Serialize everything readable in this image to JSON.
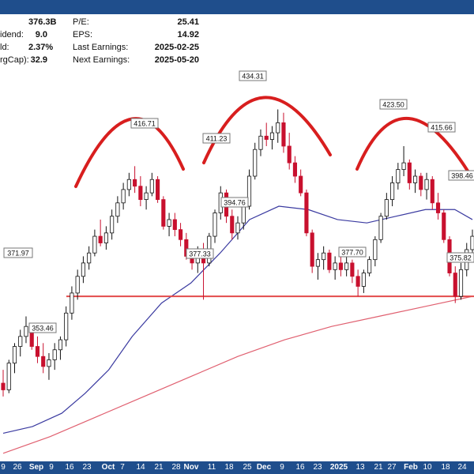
{
  "header": {
    "stats_left": [
      {
        "label": "",
        "value": "376.3B"
      },
      {
        "label": "idend:",
        "value": "9.0"
      },
      {
        "label": "ld:",
        "value": "2.37%"
      },
      {
        "label": "rgCap):",
        "value": "32.9"
      }
    ],
    "stats_right": [
      {
        "label": "P/E:",
        "value": "25.41"
      },
      {
        "label": "EPS:",
        "value": "14.92"
      },
      {
        "label": "Last Earnings:",
        "value": "2025-02-25"
      },
      {
        "label": "Next Earnings:",
        "value": "2025-05-20"
      }
    ]
  },
  "colors": {
    "bar_bg": "#1f4e8c",
    "up_candle": "#ffffff",
    "down_candle": "#c8102e",
    "ma_short": "#3a3aa0",
    "ma_long": "#e06070",
    "support": "#e34b4b",
    "arcs": "#d81e1e"
  },
  "chart_data": {
    "type": "candlestick",
    "ylim": [
      330,
      445
    ],
    "x_tick_labels": [
      {
        "label": "9",
        "bold": false
      },
      {
        "label": "26",
        "bold": false
      },
      {
        "label": "Sep",
        "bold": true
      },
      {
        "label": "9",
        "bold": false
      },
      {
        "label": "16",
        "bold": false
      },
      {
        "label": "23",
        "bold": false
      },
      {
        "label": "Oct",
        "bold": true
      },
      {
        "label": "7",
        "bold": false
      },
      {
        "label": "14",
        "bold": false
      },
      {
        "label": "21",
        "bold": false
      },
      {
        "label": "28",
        "bold": false
      },
      {
        "label": "Nov",
        "bold": true
      },
      {
        "label": "11",
        "bold": false
      },
      {
        "label": "18",
        "bold": false
      },
      {
        "label": "25",
        "bold": false
      },
      {
        "label": "Dec",
        "bold": true
      },
      {
        "label": "9",
        "bold": false
      },
      {
        "label": "16",
        "bold": false
      },
      {
        "label": "23",
        "bold": false
      },
      {
        "label": "2025",
        "bold": true
      },
      {
        "label": "13",
        "bold": false
      },
      {
        "label": "21",
        "bold": false
      },
      {
        "label": "27",
        "bold": false
      },
      {
        "label": "Feb",
        "bold": true
      },
      {
        "label": "10",
        "bold": false
      },
      {
        "label": "18",
        "bold": false
      },
      {
        "label": "24",
        "bold": false
      }
    ],
    "price_annotations": [
      "371.97",
      "353.46",
      "416.71",
      "377.33",
      "411.23",
      "394.76",
      "434.31",
      "377.70",
      "423.50",
      "415.66",
      "398.46",
      "375.82"
    ],
    "support_level": 378.0,
    "candles": [
      {
        "o": 352,
        "h": 356,
        "l": 348,
        "c": 350
      },
      {
        "o": 350,
        "h": 359,
        "l": 349,
        "c": 358
      },
      {
        "o": 358,
        "h": 364,
        "l": 355,
        "c": 363
      },
      {
        "o": 363,
        "h": 368,
        "l": 360,
        "c": 366
      },
      {
        "o": 366,
        "h": 372,
        "l": 364,
        "c": 369
      },
      {
        "o": 369,
        "h": 370,
        "l": 362,
        "c": 363
      },
      {
        "o": 363,
        "h": 366,
        "l": 358,
        "c": 360
      },
      {
        "o": 360,
        "h": 364,
        "l": 355,
        "c": 357
      },
      {
        "o": 357,
        "h": 361,
        "l": 353,
        "c": 359
      },
      {
        "o": 359,
        "h": 364,
        "l": 356,
        "c": 362
      },
      {
        "o": 362,
        "h": 366,
        "l": 359,
        "c": 365
      },
      {
        "o": 365,
        "h": 375,
        "l": 363,
        "c": 373
      },
      {
        "o": 373,
        "h": 381,
        "l": 371,
        "c": 379
      },
      {
        "o": 379,
        "h": 386,
        "l": 377,
        "c": 384
      },
      {
        "o": 384,
        "h": 390,
        "l": 382,
        "c": 388
      },
      {
        "o": 388,
        "h": 393,
        "l": 386,
        "c": 391
      },
      {
        "o": 391,
        "h": 398,
        "l": 390,
        "c": 396
      },
      {
        "o": 396,
        "h": 401,
        "l": 393,
        "c": 394
      },
      {
        "o": 394,
        "h": 399,
        "l": 392,
        "c": 397
      },
      {
        "o": 397,
        "h": 404,
        "l": 395,
        "c": 402
      },
      {
        "o": 402,
        "h": 408,
        "l": 400,
        "c": 406
      },
      {
        "o": 406,
        "h": 412,
        "l": 404,
        "c": 410
      },
      {
        "o": 410,
        "h": 415,
        "l": 408,
        "c": 413
      },
      {
        "o": 413,
        "h": 417,
        "l": 409,
        "c": 411
      },
      {
        "o": 411,
        "h": 414,
        "l": 405,
        "c": 407
      },
      {
        "o": 407,
        "h": 411,
        "l": 404,
        "c": 409
      },
      {
        "o": 409,
        "h": 415,
        "l": 408,
        "c": 413
      },
      {
        "o": 413,
        "h": 414,
        "l": 406,
        "c": 407
      },
      {
        "o": 407,
        "h": 408,
        "l": 398,
        "c": 399
      },
      {
        "o": 399,
        "h": 403,
        "l": 396,
        "c": 401
      },
      {
        "o": 401,
        "h": 403,
        "l": 396,
        "c": 398
      },
      {
        "o": 398,
        "h": 400,
        "l": 393,
        "c": 395
      },
      {
        "o": 395,
        "h": 397,
        "l": 389,
        "c": 390
      },
      {
        "o": 390,
        "h": 392,
        "l": 386,
        "c": 388
      },
      {
        "o": 388,
        "h": 393,
        "l": 385,
        "c": 391
      },
      {
        "o": 391,
        "h": 394,
        "l": 377,
        "c": 388
      },
      {
        "o": 388,
        "h": 397,
        "l": 387,
        "c": 396
      },
      {
        "o": 396,
        "h": 404,
        "l": 394,
        "c": 403
      },
      {
        "o": 403,
        "h": 411,
        "l": 401,
        "c": 409
      },
      {
        "o": 409,
        "h": 410,
        "l": 400,
        "c": 402
      },
      {
        "o": 402,
        "h": 404,
        "l": 395,
        "c": 397
      },
      {
        "o": 397,
        "h": 402,
        "l": 395,
        "c": 400
      },
      {
        "o": 400,
        "h": 407,
        "l": 398,
        "c": 405
      },
      {
        "o": 405,
        "h": 416,
        "l": 404,
        "c": 414
      },
      {
        "o": 414,
        "h": 424,
        "l": 413,
        "c": 422
      },
      {
        "o": 422,
        "h": 428,
        "l": 420,
        "c": 426
      },
      {
        "o": 426,
        "h": 430,
        "l": 423,
        "c": 425
      },
      {
        "o": 425,
        "h": 429,
        "l": 422,
        "c": 427
      },
      {
        "o": 427,
        "h": 434,
        "l": 424,
        "c": 430
      },
      {
        "o": 430,
        "h": 433,
        "l": 421,
        "c": 423
      },
      {
        "o": 423,
        "h": 427,
        "l": 416,
        "c": 418
      },
      {
        "o": 418,
        "h": 420,
        "l": 412,
        "c": 414
      },
      {
        "o": 414,
        "h": 416,
        "l": 408,
        "c": 409
      },
      {
        "o": 409,
        "h": 410,
        "l": 396,
        "c": 397
      },
      {
        "o": 397,
        "h": 398,
        "l": 385,
        "c": 387
      },
      {
        "o": 387,
        "h": 391,
        "l": 383,
        "c": 389
      },
      {
        "o": 389,
        "h": 393,
        "l": 386,
        "c": 391
      },
      {
        "o": 391,
        "h": 392,
        "l": 385,
        "c": 386
      },
      {
        "o": 386,
        "h": 390,
        "l": 383,
        "c": 388
      },
      {
        "o": 388,
        "h": 390,
        "l": 384,
        "c": 386
      },
      {
        "o": 386,
        "h": 390,
        "l": 384,
        "c": 388
      },
      {
        "o": 388,
        "h": 389,
        "l": 382,
        "c": 384
      },
      {
        "o": 384,
        "h": 386,
        "l": 378,
        "c": 381
      },
      {
        "o": 381,
        "h": 386,
        "l": 379,
        "c": 385
      },
      {
        "o": 385,
        "h": 390,
        "l": 384,
        "c": 389
      },
      {
        "o": 389,
        "h": 396,
        "l": 387,
        "c": 395
      },
      {
        "o": 395,
        "h": 403,
        "l": 394,
        "c": 402
      },
      {
        "o": 402,
        "h": 409,
        "l": 401,
        "c": 407
      },
      {
        "o": 407,
        "h": 414,
        "l": 405,
        "c": 412
      },
      {
        "o": 412,
        "h": 418,
        "l": 410,
        "c": 416
      },
      {
        "o": 416,
        "h": 423,
        "l": 414,
        "c": 418
      },
      {
        "o": 418,
        "h": 419,
        "l": 410,
        "c": 412
      },
      {
        "o": 412,
        "h": 416,
        "l": 409,
        "c": 414
      },
      {
        "o": 414,
        "h": 415,
        "l": 408,
        "c": 410
      },
      {
        "o": 410,
        "h": 415,
        "l": 407,
        "c": 413
      },
      {
        "o": 413,
        "h": 414,
        "l": 404,
        "c": 406
      },
      {
        "o": 406,
        "h": 409,
        "l": 401,
        "c": 403
      },
      {
        "o": 403,
        "h": 404,
        "l": 394,
        "c": 395
      },
      {
        "o": 395,
        "h": 396,
        "l": 384,
        "c": 385
      },
      {
        "o": 385,
        "h": 387,
        "l": 376,
        "c": 378
      },
      {
        "o": 378,
        "h": 388,
        "l": 377,
        "c": 386
      },
      {
        "o": 386,
        "h": 394,
        "l": 384,
        "c": 392
      },
      {
        "o": 392,
        "h": 398,
        "l": 389,
        "c": 396
      }
    ],
    "ma_short": [
      [
        0,
        337
      ],
      [
        5,
        339
      ],
      [
        10,
        343
      ],
      [
        14,
        349
      ],
      [
        18,
        356
      ],
      [
        22,
        366
      ],
      [
        27,
        376
      ],
      [
        32,
        382
      ],
      [
        37,
        391
      ],
      [
        42,
        401
      ],
      [
        47,
        405
      ],
      [
        52,
        404
      ],
      [
        57,
        401
      ],
      [
        62,
        400
      ],
      [
        67,
        402
      ],
      [
        72,
        404
      ],
      [
        77,
        404
      ],
      [
        80,
        401
      ]
    ],
    "ma_long": [
      [
        0,
        331
      ],
      [
        8,
        336
      ],
      [
        16,
        342
      ],
      [
        24,
        348
      ],
      [
        32,
        354
      ],
      [
        40,
        360
      ],
      [
        48,
        365
      ],
      [
        56,
        369
      ],
      [
        64,
        372
      ],
      [
        72,
        375
      ],
      [
        80,
        378
      ]
    ]
  }
}
